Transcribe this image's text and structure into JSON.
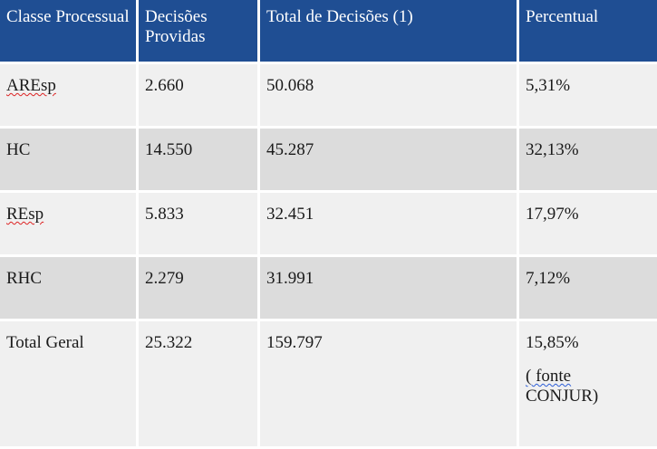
{
  "table": {
    "headers": [
      "Classe Processual",
      "Decisões Providas",
      "Total de Decisões (1)",
      "Percentual"
    ],
    "rows": [
      {
        "classe": "AREsp",
        "providas": "2.660",
        "total": "50.068",
        "percentual": "5,31%"
      },
      {
        "classe": "HC",
        "providas": "14.550",
        "total": "45.287",
        "percentual": "32,13%"
      },
      {
        "classe": "REsp",
        "providas": "5.833",
        "total": "32.451",
        "percentual": "17,97%"
      },
      {
        "classe": "RHC",
        "providas": "2.279",
        "total": "31.991",
        "percentual": "7,12%"
      }
    ],
    "total_row": {
      "classe": "Total Geral",
      "providas": "25.322",
      "total": "159.797",
      "percentual": "15,85%",
      "source_open": "( fonte",
      "source_name": "CONJUR)"
    }
  },
  "colors": {
    "header_bg": "#1f4e93",
    "row_light": "#f0f0f0",
    "row_dark": "#dcdcdc"
  }
}
